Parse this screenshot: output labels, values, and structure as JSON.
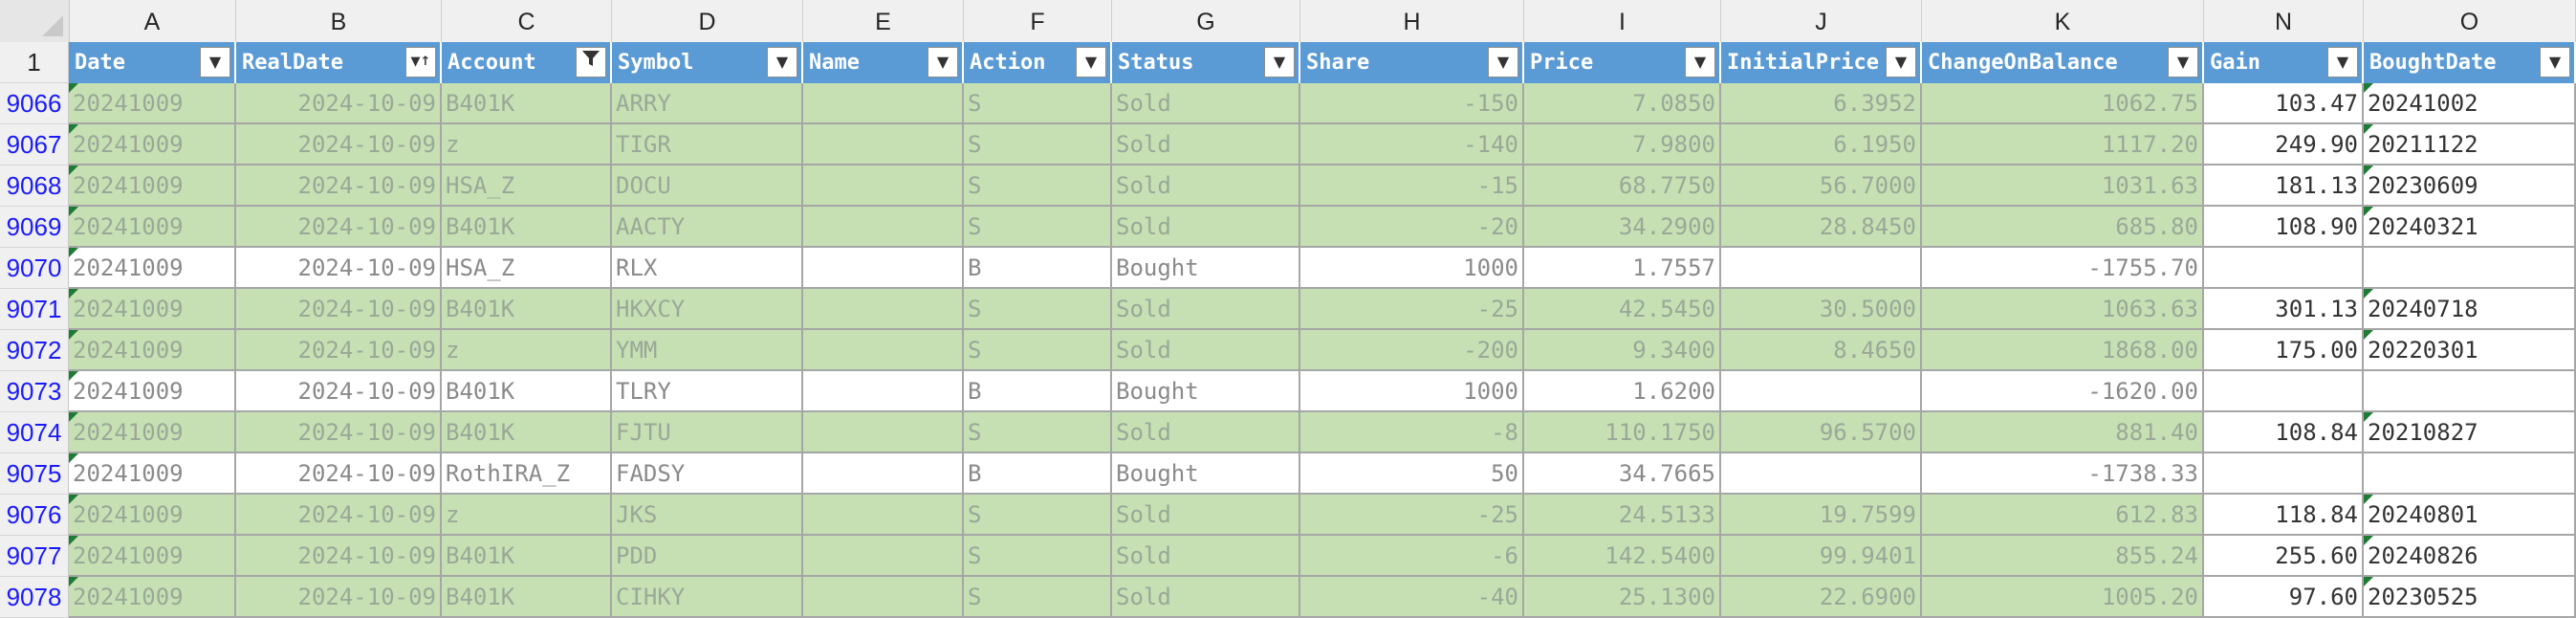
{
  "columns": [
    "A",
    "B",
    "C",
    "D",
    "E",
    "F",
    "G",
    "H",
    "I",
    "J",
    "K",
    "N",
    "O"
  ],
  "header_row_number": "1",
  "filter_headers": [
    "Date",
    "RealDate",
    "Account",
    "Symbol",
    "Name",
    "Action",
    "Status",
    "Share",
    "Price",
    "InitialPrice",
    "ChangeOnBalance",
    "Gain",
    "BoughtDate"
  ],
  "filter_icons": [
    "dropdown-arrow",
    "sort-ascending",
    "filter-funnel",
    "dropdown-arrow",
    "dropdown-arrow",
    "dropdown-arrow",
    "dropdown-arrow",
    "dropdown-arrow",
    "dropdown-arrow",
    "dropdown-arrow",
    "dropdown-arrow",
    "dropdown-arrow",
    "dropdown-arrow"
  ],
  "colors": {
    "header_blue": "#5b9bd5",
    "sold_green": "#c6e0b4",
    "row_number_blue": "#1a1aff",
    "error_triangle": "#1e7b34"
  },
  "rows": [
    {
      "n": "9066",
      "status_type": "sold",
      "cells": [
        "20241009",
        "2024-10-09",
        "B401K",
        "ARRY",
        "",
        "S",
        "Sold",
        "-150",
        "7.0850",
        "6.3952",
        "1062.75",
        "103.47",
        "20241002"
      ]
    },
    {
      "n": "9067",
      "status_type": "sold",
      "cells": [
        "20241009",
        "2024-10-09",
        "z",
        "TIGR",
        "",
        "S",
        "Sold",
        "-140",
        "7.9800",
        "6.1950",
        "1117.20",
        "249.90",
        "20211122"
      ]
    },
    {
      "n": "9068",
      "status_type": "sold",
      "cells": [
        "20241009",
        "2024-10-09",
        "HSA_Z",
        "DOCU",
        "",
        "S",
        "Sold",
        "-15",
        "68.7750",
        "56.7000",
        "1031.63",
        "181.13",
        "20230609"
      ]
    },
    {
      "n": "9069",
      "status_type": "sold",
      "cells": [
        "20241009",
        "2024-10-09",
        "B401K",
        "AACTY",
        "",
        "S",
        "Sold",
        "-20",
        "34.2900",
        "28.8450",
        "685.80",
        "108.90",
        "20240321"
      ]
    },
    {
      "n": "9070",
      "status_type": "bought",
      "cells": [
        "20241009",
        "2024-10-09",
        "HSA_Z",
        "RLX",
        "",
        "B",
        "Bought",
        "1000",
        "1.7557",
        "",
        "-1755.70",
        "",
        ""
      ]
    },
    {
      "n": "9071",
      "status_type": "sold",
      "cells": [
        "20241009",
        "2024-10-09",
        "B401K",
        "HKXCY",
        "",
        "S",
        "Sold",
        "-25",
        "42.5450",
        "30.5000",
        "1063.63",
        "301.13",
        "20240718"
      ]
    },
    {
      "n": "9072",
      "status_type": "sold",
      "cells": [
        "20241009",
        "2024-10-09",
        "z",
        "YMM",
        "",
        "S",
        "Sold",
        "-200",
        "9.3400",
        "8.4650",
        "1868.00",
        "175.00",
        "20220301"
      ]
    },
    {
      "n": "9073",
      "status_type": "bought",
      "cells": [
        "20241009",
        "2024-10-09",
        "B401K",
        "TLRY",
        "",
        "B",
        "Bought",
        "1000",
        "1.6200",
        "",
        "-1620.00",
        "",
        ""
      ]
    },
    {
      "n": "9074",
      "status_type": "sold",
      "cells": [
        "20241009",
        "2024-10-09",
        "B401K",
        "FJTU",
        "",
        "S",
        "Sold",
        "-8",
        "110.1750",
        "96.5700",
        "881.40",
        "108.84",
        "20210827"
      ]
    },
    {
      "n": "9075",
      "status_type": "bought",
      "cells": [
        "20241009",
        "2024-10-09",
        "RothIRA_Z",
        "FADSY",
        "",
        "B",
        "Bought",
        "50",
        "34.7665",
        "",
        "-1738.33",
        "",
        ""
      ]
    },
    {
      "n": "9076",
      "status_type": "sold",
      "cells": [
        "20241009",
        "2024-10-09",
        "z",
        "JKS",
        "",
        "S",
        "Sold",
        "-25",
        "24.5133",
        "19.7599",
        "612.83",
        "118.84",
        "20240801"
      ]
    },
    {
      "n": "9077",
      "status_type": "sold",
      "cells": [
        "20241009",
        "2024-10-09",
        "B401K",
        "PDD",
        "",
        "S",
        "Sold",
        "-6",
        "142.5400",
        "99.9401",
        "855.24",
        "255.60",
        "20240826"
      ]
    },
    {
      "n": "9078",
      "status_type": "sold",
      "cells": [
        "20241009",
        "2024-10-09",
        "B401K",
        "CIHKY",
        "",
        "S",
        "Sold",
        "-40",
        "25.1300",
        "22.6900",
        "1005.20",
        "97.60",
        "20230525"
      ]
    }
  ]
}
